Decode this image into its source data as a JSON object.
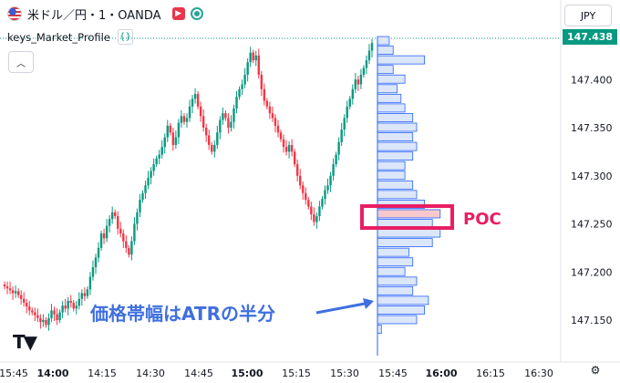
{
  "header": {
    "symbol": "米ドル／円・1・OANDA",
    "currency": "JPY",
    "indicator_name": "keys_Market_Profile"
  },
  "annotations": {
    "poc": "POC",
    "band": "価格帯幅はATRの半分"
  },
  "colors": {
    "up": "#089981",
    "down": "#f23645",
    "profile_fill": "#dbe6f8",
    "profile_stroke": "#2962ff",
    "poc_fill": "#f7c9cc",
    "highlight": "#e91e63",
    "callout": "#3f6fe0"
  },
  "chart_data": {
    "type": "candlestick",
    "ylim": [
      147.12,
      147.45
    ],
    "last_price": "147.438",
    "x_ticks": [
      "15:45",
      "14:00",
      "14:15",
      "14:30",
      "14:45",
      "15:00",
      "15:15",
      "15:30",
      "15:45",
      "16:00",
      "16:15",
      "16:30"
    ],
    "y_ticks": [
      "147.400",
      "147.350",
      "147.300",
      "147.250",
      "147.200",
      "147.150"
    ],
    "closes": [
      147.185,
      147.183,
      147.181,
      147.178,
      147.18,
      147.176,
      147.172,
      147.168,
      147.164,
      147.16,
      147.158,
      147.155,
      147.152,
      147.148,
      147.15,
      147.145,
      147.152,
      147.16,
      147.156,
      147.15,
      147.158,
      147.165,
      147.162,
      147.17,
      147.168,
      147.162,
      147.165,
      147.172,
      147.178,
      147.175,
      147.182,
      147.195,
      147.205,
      147.215,
      147.225,
      147.24,
      147.235,
      147.248,
      147.255,
      147.262,
      147.258,
      147.245,
      147.24,
      147.232,
      147.225,
      147.218,
      147.232,
      147.25,
      147.262,
      147.275,
      147.282,
      147.29,
      147.298,
      147.305,
      147.312,
      147.318,
      147.322,
      147.33,
      147.34,
      147.352,
      147.345,
      147.332,
      147.34,
      147.355,
      147.362,
      147.356,
      147.36,
      147.372,
      147.38,
      147.385,
      147.372,
      147.362,
      147.35,
      147.342,
      147.332,
      147.325,
      147.332,
      147.345,
      147.358,
      147.365,
      147.36,
      147.35,
      147.356,
      147.37,
      147.382,
      147.39,
      147.395,
      147.405,
      147.418,
      147.428,
      147.42,
      147.425,
      147.405,
      147.39,
      147.378,
      147.372,
      147.365,
      147.36,
      147.352,
      147.345,
      147.338,
      147.33,
      147.325,
      147.332,
      147.325,
      147.312,
      147.3,
      147.29,
      147.282,
      147.275,
      147.268,
      147.26,
      147.252,
      147.258,
      147.268,
      147.276,
      147.285,
      147.29,
      147.3,
      147.312,
      147.322,
      147.335,
      147.348,
      147.36,
      147.372,
      147.38,
      147.39,
      147.4,
      147.395,
      147.405,
      147.412,
      147.42,
      147.43,
      147.438
    ],
    "profile": {
      "poc": 147.26,
      "levels": [
        147.14,
        147.15,
        147.16,
        147.17,
        147.18,
        147.19,
        147.2,
        147.21,
        147.22,
        147.23,
        147.24,
        147.25,
        147.26,
        147.27,
        147.28,
        147.29,
        147.3,
        147.31,
        147.32,
        147.33,
        147.34,
        147.35,
        147.36,
        147.37,
        147.38,
        147.39,
        147.4,
        147.41,
        147.42,
        147.43,
        147.44
      ],
      "counts": [
        1,
        10,
        12,
        13,
        9,
        10,
        7,
        9,
        8,
        14,
        16,
        14,
        16,
        12,
        10,
        9,
        7,
        7,
        9,
        10,
        9,
        10,
        9,
        7,
        6,
        5,
        7,
        4,
        12,
        4,
        3
      ]
    }
  }
}
